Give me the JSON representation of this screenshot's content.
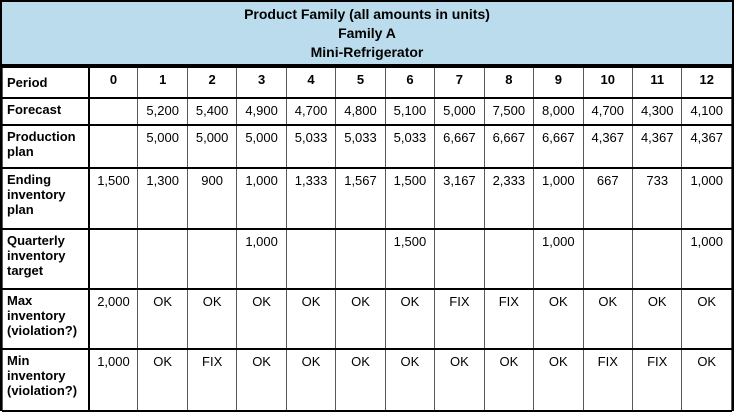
{
  "colors": {
    "header_bg": "#bbdcec",
    "grid_vertical_line": "#595959",
    "grid_horizontal_line": "#000000",
    "text": "#000000"
  },
  "chart_data": {
    "type": "table",
    "title": "Product Family (all amounts in units)",
    "subtitle1": "Family A",
    "subtitle2": "Mini-Refrigerator",
    "period_label": "Period",
    "periods": [
      "0",
      "1",
      "2",
      "3",
      "4",
      "5",
      "6",
      "7",
      "8",
      "9",
      "10",
      "11",
      "12"
    ],
    "rows": [
      {
        "label": "Forecast",
        "values": [
          "",
          "5,200",
          "5,400",
          "4,900",
          "4,700",
          "4,800",
          "5,100",
          "5,000",
          "7,500",
          "8,000",
          "4,700",
          "4,300",
          "4,100"
        ]
      },
      {
        "label": "Production plan",
        "values": [
          "",
          "5,000",
          "5,000",
          "5,000",
          "5,033",
          "5,033",
          "5,033",
          "6,667",
          "6,667",
          "6,667",
          "4,367",
          "4,367",
          "4,367"
        ]
      },
      {
        "label": "Ending inventory plan",
        "values": [
          "1,500",
          "1,300",
          "900",
          "1,000",
          "1,333",
          "1,567",
          "1,500",
          "3,167",
          "2,333",
          "1,000",
          "667",
          "733",
          "1,000"
        ]
      },
      {
        "label": "Quarterly inventory target",
        "values": [
          "",
          "",
          "",
          "1,000",
          "",
          "",
          "1,500",
          "",
          "",
          "1,000",
          "",
          "",
          "1,000"
        ]
      },
      {
        "label": "Max inventory (violation?)",
        "values": [
          "2,000",
          "OK",
          "OK",
          "OK",
          "OK",
          "OK",
          "OK",
          "FIX",
          "FIX",
          "OK",
          "OK",
          "OK",
          "OK"
        ]
      },
      {
        "label": "Min inventory (violation?)",
        "values": [
          "1,000",
          "OK",
          "FIX",
          "OK",
          "OK",
          "OK",
          "OK",
          "OK",
          "OK",
          "OK",
          "FIX",
          "FIX",
          "OK"
        ]
      }
    ]
  }
}
